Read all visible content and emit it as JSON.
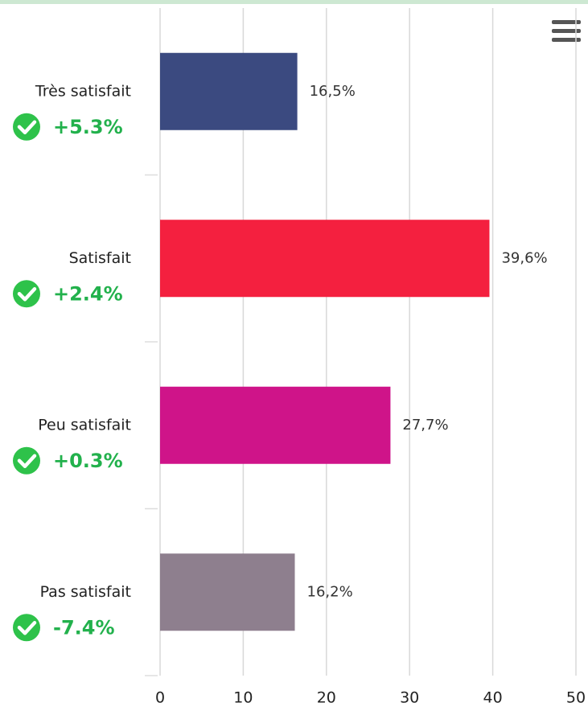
{
  "chart_data": {
    "type": "bar",
    "orientation": "horizontal",
    "categories": [
      "Très satisfait",
      "Satisfait",
      "Peu satisfait",
      "Pas satisfait"
    ],
    "values": [
      16.5,
      39.6,
      27.7,
      16.2
    ],
    "value_labels": [
      "16,5%",
      "39,6%",
      "27,7%",
      "16,2%"
    ],
    "changes": [
      "+5.3%",
      "+2.4%",
      "+0.3%",
      "-7.4%"
    ],
    "colors": [
      "#3b4a80",
      "#f4203f",
      "#cf1489",
      "#8e7f8e"
    ],
    "xlim": [
      0,
      50
    ],
    "xticks": [
      0,
      10,
      20,
      30,
      40,
      50
    ],
    "grid": true
  }
}
